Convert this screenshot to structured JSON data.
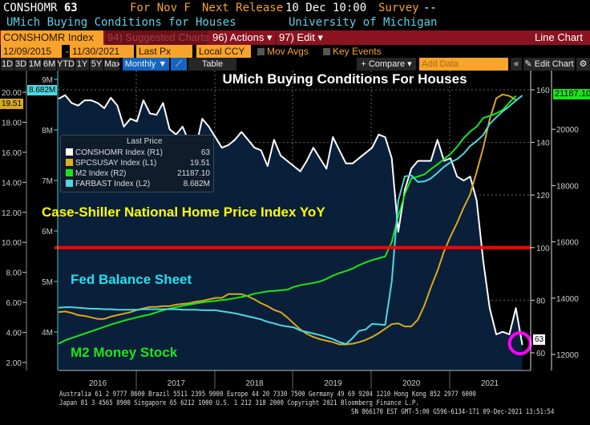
{
  "header": {
    "ticker": "CONSHOMR",
    "value": "63",
    "for": "For Nov F",
    "next_release_label": "Next Release",
    "next_release": "10 Dec 10:00",
    "survey_label": "Survey",
    "survey": "--",
    "description": "UMich Buying Conditions for Houses",
    "source": "University of Michigan"
  },
  "toolbar": {
    "security": "CONSHOMR Index",
    "suggested": "94) Suggested Charts",
    "actions": "96) Actions ▾",
    "edit": "97) Edit ▾",
    "chart_type": "Line Chart"
  },
  "range": {
    "start": "12/09/2015",
    "sep": "-",
    "end": "11/30/2021",
    "field": "Last Px",
    "currency": "Local CCY",
    "mov_avgs": "Mov Avgs",
    "key_events": "Key Events"
  },
  "periods": [
    "1D",
    "3D",
    "1M",
    "6M",
    "YTD",
    "1Y",
    "5Y",
    "Max"
  ],
  "freq": "Monthly ▼",
  "table": "Table",
  "compare": "+ Compare ▾",
  "add_data_placeholder": "Add Data",
  "collapse": "«",
  "edit_chart": "✎ Edit Chart",
  "settings": "⚙",
  "annotations": {
    "title": "UMich Buying Conditions For Houses",
    "case_shiller": "Case-Shiller National Home Price Index YoY",
    "fed": "Fed Balance Sheet",
    "m2": "M2 Money Stock"
  },
  "legend": {
    "title": "Last Price",
    "items": [
      {
        "name": "CONSHOMR Index  (R1)",
        "value": "63",
        "color": "#ffffff"
      },
      {
        "name": "SPCSUSAY Index  (L1)",
        "value": "19.51",
        "color": "#e0b020"
      },
      {
        "name": "M2 Index  (R2)",
        "value": "21187.10",
        "color": "#19e619"
      },
      {
        "name": "FARBAST Index  (L2)",
        "value": "8.682M",
        "color": "#4dd8e0"
      }
    ]
  },
  "tags": {
    "l1": "19.51",
    "l2": "8.682M",
    "r2": "21187.10",
    "r1": "63"
  },
  "footer": {
    "line1": "Australia 61 2 9777 8600 Brazil 5511 2395 9000 Europe 44 20 7330 7500 Germany 49 69 9204 1210 Hong Kong 852 2977 6000",
    "line2": "Japan 81 3 4565 8900       Singapore 65 6212 1000       U.S. 1 212 318 2000       Copyright 2021 Bloomberg Finance L.P.",
    "line3": "SN 866170 EST  GMT-5:00 G596-6134-171 09-Dec-2021 13:51:54"
  },
  "chart_data": {
    "type": "line",
    "title": "UMich Buying Conditions For Houses",
    "frequency": "monthly",
    "start": "2015-12",
    "end": "2021-11",
    "x_ticks": [
      "2016",
      "2017",
      "2018",
      "2019",
      "2020",
      "2021"
    ],
    "axes": {
      "L1": {
        "range": [
          2,
          20
        ],
        "ticks": [
          "2.00",
          "4.00",
          "6.00",
          "8.00",
          "10.00",
          "12.00",
          "14.00",
          "16.00",
          "18.00",
          "20.00"
        ]
      },
      "L2": {
        "range": [
          4,
          9
        ],
        "ticks": [
          "4M",
          "5M",
          "6M",
          "7M",
          "8M",
          "9M"
        ]
      },
      "R1": {
        "range": [
          60,
          160
        ],
        "ticks": [
          "60",
          "80",
          "100",
          "120",
          "140",
          "160"
        ]
      },
      "R2": {
        "range": [
          12000,
          20000
        ],
        "ticks": [
          "12000",
          "14000",
          "16000",
          "18000",
          "20000"
        ]
      }
    },
    "reference_line": {
      "axis": "R1",
      "value": 100,
      "color": "#ff0000"
    },
    "highlight": {
      "series": "CONSHOMR",
      "point": "last",
      "color": "#ff00ff"
    },
    "series": [
      {
        "name": "CONSHOMR Index",
        "axis": "R1",
        "color": "#ffffff",
        "fill": true,
        "values": [
          156.6,
          158,
          155,
          154,
          156,
          156,
          155,
          153,
          157,
          154,
          146,
          149,
          148,
          156,
          151,
          150.5,
          155,
          145,
          143,
          146,
          140,
          138,
          149,
          146,
          142,
          138,
          139,
          141,
          144,
          141,
          138,
          137,
          131,
          141,
          135,
          133,
          131,
          129,
          133,
          138,
          134,
          130,
          142,
          137,
          132,
          132,
          134,
          136,
          138,
          143,
          142,
          134,
          106,
          122,
          130,
          133,
          133,
          133,
          141,
          133,
          134,
          127,
          125.5,
          127,
          118,
          95,
          77,
          67,
          68,
          67,
          77,
          63
        ]
      },
      {
        "name": "SPCSUSAY Index",
        "axis": "L1",
        "color": "#d9a81c",
        "values": [
          5.35,
          5.4,
          5.3,
          5.15,
          5.1,
          5.0,
          4.9,
          4.9,
          5.05,
          5.15,
          5.25,
          5.35,
          5.5,
          5.6,
          5.7,
          5.7,
          5.75,
          5.75,
          5.85,
          5.9,
          5.95,
          6.05,
          6.1,
          6.2,
          6.3,
          6.3,
          6.55,
          6.55,
          6.55,
          6.4,
          6.2,
          5.95,
          5.75,
          5.5,
          5.35,
          5.0,
          4.6,
          4.2,
          3.9,
          3.7,
          3.55,
          3.45,
          3.35,
          3.2,
          3.2,
          3.25,
          3.35,
          3.5,
          3.7,
          3.95,
          4.25,
          4.55,
          4.6,
          4.4,
          4.4,
          4.85,
          5.8,
          7.0,
          8.1,
          9.4,
          10.4,
          11.3,
          12.3,
          13.2,
          14.7,
          16.3,
          18.2,
          19.6,
          19.85,
          19.75,
          19.51
        ]
      },
      {
        "name": "M2 Index",
        "axis": "R2",
        "color": "#19e619",
        "values": [
          12380,
          12500,
          12580,
          12660,
          12740,
          12820,
          12900,
          12980,
          13060,
          13130,
          13200,
          13260,
          13320,
          13370,
          13420,
          13500,
          13570,
          13630,
          13680,
          13730,
          13770,
          13810,
          13850,
          13880,
          13900,
          13930,
          13960,
          14000,
          14040,
          14090,
          14160,
          14200,
          14240,
          14260,
          14280,
          14300,
          14400,
          14460,
          14500,
          14540,
          14590,
          14680,
          14800,
          14890,
          14960,
          15050,
          15170,
          15270,
          15350,
          15420,
          15480,
          16000,
          16900,
          17700,
          18250,
          18320,
          18400,
          18580,
          18750,
          18940,
          19120,
          19380,
          19680,
          19920,
          20090,
          20400,
          20480,
          20560,
          20690,
          20950,
          21187.1
        ]
      },
      {
        "name": "FARBAST Index",
        "axis": "L2",
        "color": "#4dd8e0",
        "values": [
          4.48,
          4.49,
          4.49,
          4.48,
          4.47,
          4.46,
          4.46,
          4.45,
          4.45,
          4.44,
          4.44,
          4.44,
          4.44,
          4.45,
          4.45,
          4.45,
          4.45,
          4.45,
          4.45,
          4.44,
          4.44,
          4.44,
          4.43,
          4.43,
          4.43,
          4.41,
          4.39,
          4.37,
          4.34,
          4.31,
          4.28,
          4.25,
          4.2,
          4.17,
          4.13,
          4.11,
          4.09,
          4.03,
          4.0,
          3.97,
          3.94,
          3.9,
          3.86,
          3.8,
          3.76,
          3.88,
          4.02,
          4.05,
          4.16,
          4.15,
          4.14,
          5.0,
          6.6,
          7.08,
          7.1,
          6.97,
          6.98,
          7.04,
          7.15,
          7.27,
          7.36,
          7.42,
          7.53,
          7.68,
          7.78,
          7.9,
          8.12,
          8.25,
          8.37,
          8.47,
          8.58,
          8.682
        ]
      }
    ]
  }
}
